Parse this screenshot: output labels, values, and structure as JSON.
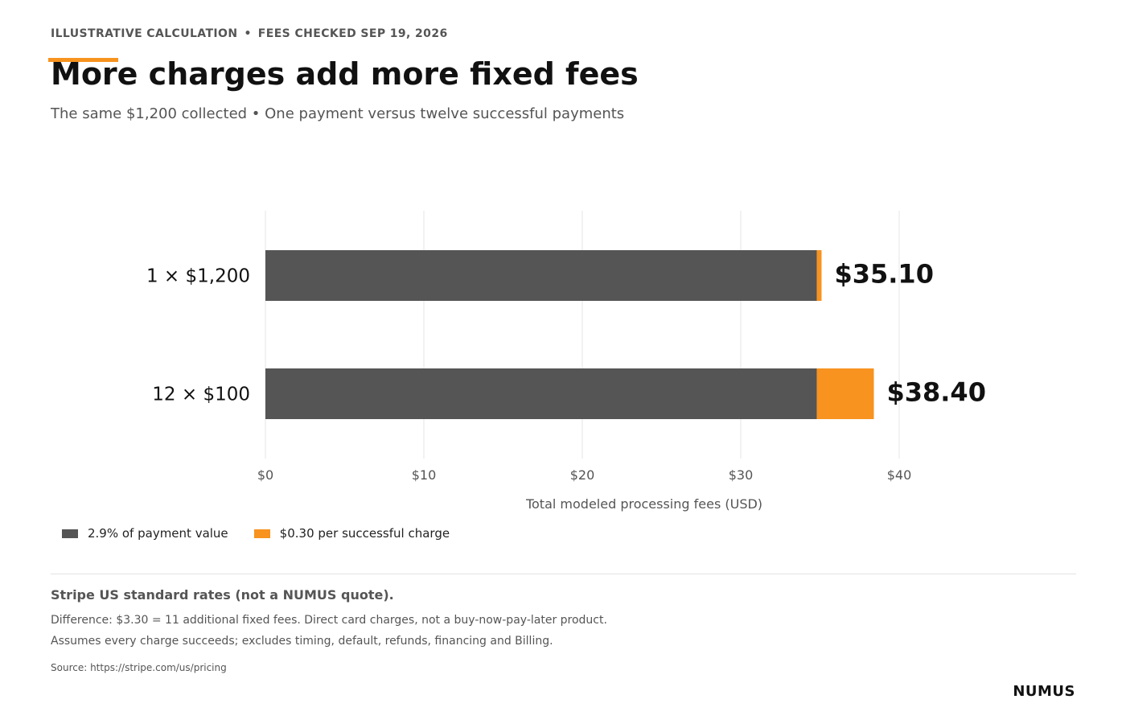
{
  "header": {
    "eyebrow_left": "ILLUSTRATIVE CALCULATION",
    "eyebrow_sep": "•",
    "eyebrow_right": "FEES CHECKED SEP 19, 2026",
    "title": "More charges add more fixed fees",
    "subtitle": "The same $1,200 collected • One payment versus twelve successful payments"
  },
  "colors": {
    "percent_fee": "#555555",
    "fixed_fee": "#F7931E",
    "accent": "#F7931E",
    "grid": "#e6e6e6"
  },
  "chart_data": {
    "type": "bar",
    "orientation": "horizontal",
    "stacked": true,
    "categories": [
      "1 × $1,200",
      "12 × $100"
    ],
    "series": [
      {
        "name": "2.9% of payment value",
        "values": [
          34.8,
          34.8
        ]
      },
      {
        "name": "$0.30 per successful charge",
        "values": [
          0.3,
          3.6
        ]
      }
    ],
    "totals": [
      35.1,
      38.4
    ],
    "total_labels": [
      "$35.10",
      "$38.40"
    ],
    "xlim": [
      0,
      40
    ],
    "xticks": [
      0,
      10,
      20,
      30,
      40
    ],
    "xtick_labels": [
      "$0",
      "$10",
      "$20",
      "$30",
      "$40"
    ],
    "xlabel": "Total modeled processing fees (USD)",
    "grid": "vertical",
    "legend_position": "bottom-left"
  },
  "legend": {
    "items": [
      {
        "label": "2.9% of payment value",
        "icon": "dark-gray-swatch"
      },
      {
        "label": "$0.30 per successful charge",
        "icon": "orange-swatch"
      }
    ]
  },
  "notes": {
    "title": "Stripe US standard rates (not a NUMUS quote).",
    "line1": "Difference: $3.30 = 11 additional fixed fees. Direct card charges, not a buy-now-pay-later product.",
    "line2": "Assumes every charge succeeds; excludes timing, default, refunds, financing and Billing.",
    "source": "Source: https://stripe.com/us/pricing"
  },
  "brand": "NUMUS"
}
